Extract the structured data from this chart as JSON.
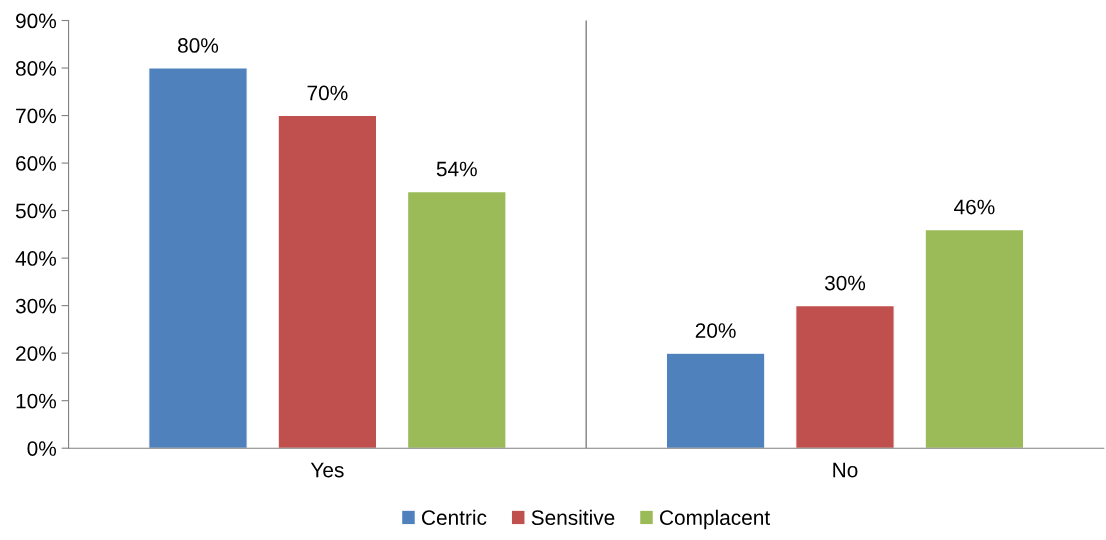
{
  "chart_data": {
    "type": "bar",
    "categories": [
      "Yes",
      "No"
    ],
    "series": [
      {
        "name": "Centric",
        "color": "#4f81bd",
        "values": [
          80,
          20
        ],
        "value_labels": [
          "80%",
          "20%"
        ]
      },
      {
        "name": "Sensitive",
        "color": "#c0504d",
        "values": [
          70,
          30
        ],
        "value_labels": [
          "70%",
          "30%"
        ]
      },
      {
        "name": "Complacent",
        "color": "#9bbb59",
        "values": [
          54,
          46
        ],
        "value_labels": [
          "54%",
          "46%"
        ]
      }
    ],
    "ylim": [
      0,
      90
    ],
    "yticks": [
      {
        "value": 0,
        "label": "0%"
      },
      {
        "value": 10,
        "label": "10%"
      },
      {
        "value": 20,
        "label": "20%"
      },
      {
        "value": 30,
        "label": "30%"
      },
      {
        "value": 40,
        "label": "40%"
      },
      {
        "value": 50,
        "label": "50%"
      },
      {
        "value": 60,
        "label": "60%"
      },
      {
        "value": 70,
        "label": "70%"
      },
      {
        "value": 80,
        "label": "80%"
      },
      {
        "value": 90,
        "label": "90%"
      }
    ],
    "grid": false,
    "legend": "bottom"
  }
}
